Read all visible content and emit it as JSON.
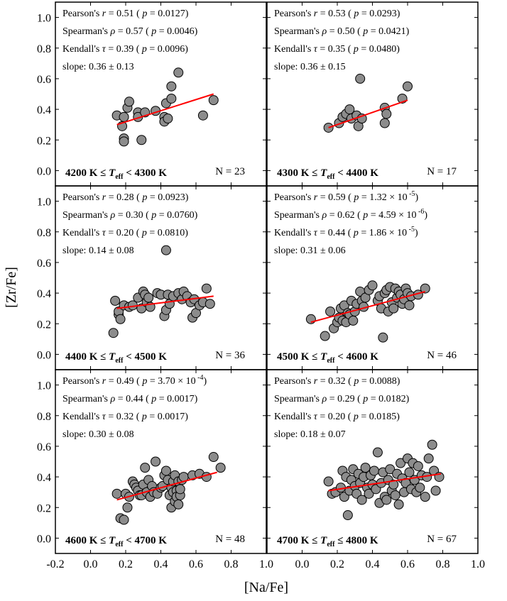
{
  "figure": {
    "xlabel": "[Na/Fe]",
    "ylabel": "[Zr/Fe]",
    "x_ticks_left": [
      "-0.2",
      "0.0",
      "0.2",
      "0.4",
      "0.6",
      "0.8",
      "1.0"
    ],
    "x_ticks_right": [
      "0.0",
      "0.2",
      "0.4",
      "0.6",
      "0.8",
      "1.0"
    ],
    "y_ticks": [
      "0.0",
      "0.2",
      "0.4",
      "0.6",
      "0.8",
      "1.0"
    ]
  },
  "chart_data": [
    {
      "type": "scatter",
      "panel": "4200-4300",
      "range": {
        "lo": "4200 K",
        "hi": "4300 K",
        "rel": "< "
      },
      "n": "N = 23",
      "pearson": {
        "val": "0.51",
        "p": "0.0127",
        "exp": ""
      },
      "spearman": {
        "val": "0.57",
        "p": "0.0046",
        "exp": ""
      },
      "kendall": {
        "val": "0.39",
        "p": "0.0096",
        "exp": ""
      },
      "slope": "0.36 ± 0.13",
      "xlim": [
        -0.2,
        1.0
      ],
      "ylim": [
        -0.1,
        1.1
      ],
      "fit": {
        "x": [
          0.15,
          0.7
        ],
        "y": [
          0.3,
          0.5
        ]
      },
      "points": [
        [
          0.15,
          0.36
        ],
        [
          0.18,
          0.29
        ],
        [
          0.19,
          0.35
        ],
        [
          0.19,
          0.21
        ],
        [
          0.19,
          0.19
        ],
        [
          0.21,
          0.41
        ],
        [
          0.22,
          0.45
        ],
        [
          0.27,
          0.38
        ],
        [
          0.27,
          0.35
        ],
        [
          0.29,
          0.2
        ],
        [
          0.31,
          0.38
        ],
        [
          0.37,
          0.39
        ],
        [
          0.42,
          0.35
        ],
        [
          0.42,
          0.32
        ],
        [
          0.43,
          0.44
        ],
        [
          0.44,
          0.34
        ],
        [
          0.46,
          0.47
        ],
        [
          0.46,
          0.55
        ],
        [
          0.5,
          0.64
        ],
        [
          0.64,
          0.36
        ],
        [
          0.7,
          0.46
        ]
      ]
    },
    {
      "type": "scatter",
      "panel": "4300-4400",
      "range": {
        "lo": "4300 K",
        "hi": "4400 K",
        "rel": "< "
      },
      "n": "N = 17",
      "pearson": {
        "val": "0.53",
        "p": "0.0293",
        "exp": ""
      },
      "spearman": {
        "val": "0.50",
        "p": "0.0421",
        "exp": ""
      },
      "kendall": {
        "val": "0.35",
        "p": "0.0480",
        "exp": ""
      },
      "slope": "0.36 ± 0.15",
      "xlim": [
        -0.2,
        1.0
      ],
      "ylim": [
        -0.1,
        1.1
      ],
      "fit": {
        "x": [
          0.15,
          0.6
        ],
        "y": [
          0.28,
          0.46
        ]
      },
      "points": [
        [
          0.15,
          0.28
        ],
        [
          0.21,
          0.31
        ],
        [
          0.23,
          0.35
        ],
        [
          0.25,
          0.37
        ],
        [
          0.27,
          0.4
        ],
        [
          0.28,
          0.34
        ],
        [
          0.31,
          0.36
        ],
        [
          0.32,
          0.29
        ],
        [
          0.33,
          0.6
        ],
        [
          0.34,
          0.34
        ],
        [
          0.47,
          0.31
        ],
        [
          0.47,
          0.41
        ],
        [
          0.48,
          0.37
        ],
        [
          0.57,
          0.47
        ],
        [
          0.6,
          0.55
        ]
      ]
    },
    {
      "type": "scatter",
      "panel": "4400-4500",
      "range": {
        "lo": "4400 K",
        "hi": "4500 K",
        "rel": "< "
      },
      "n": "N = 36",
      "pearson": {
        "val": "0.28",
        "p": "0.0923",
        "exp": ""
      },
      "spearman": {
        "val": "0.30",
        "p": "0.0760",
        "exp": ""
      },
      "kendall": {
        "val": "0.20",
        "p": "0.0810",
        "exp": ""
      },
      "slope": "0.14 ± 0.08",
      "xlim": [
        -0.2,
        1.0
      ],
      "ylim": [
        -0.1,
        1.1
      ],
      "fit": {
        "x": [
          0.15,
          0.7
        ],
        "y": [
          0.3,
          0.38
        ]
      },
      "points": [
        [
          0.13,
          0.14
        ],
        [
          0.14,
          0.35
        ],
        [
          0.16,
          0.26
        ],
        [
          0.16,
          0.28
        ],
        [
          0.17,
          0.23
        ],
        [
          0.19,
          0.32
        ],
        [
          0.22,
          0.31
        ],
        [
          0.24,
          0.32
        ],
        [
          0.27,
          0.37
        ],
        [
          0.29,
          0.3
        ],
        [
          0.3,
          0.41
        ],
        [
          0.31,
          0.39
        ],
        [
          0.32,
          0.34
        ],
        [
          0.33,
          0.37
        ],
        [
          0.34,
          0.31
        ],
        [
          0.38,
          0.4
        ],
        [
          0.4,
          0.39
        ],
        [
          0.42,
          0.25
        ],
        [
          0.43,
          0.29
        ],
        [
          0.43,
          0.68
        ],
        [
          0.44,
          0.39
        ],
        [
          0.45,
          0.33
        ],
        [
          0.47,
          0.38
        ],
        [
          0.5,
          0.4
        ],
        [
          0.52,
          0.36
        ],
        [
          0.53,
          0.41
        ],
        [
          0.55,
          0.38
        ],
        [
          0.57,
          0.34
        ],
        [
          0.58,
          0.24
        ],
        [
          0.59,
          0.36
        ],
        [
          0.6,
          0.27
        ],
        [
          0.62,
          0.32
        ],
        [
          0.64,
          0.34
        ],
        [
          0.66,
          0.43
        ],
        [
          0.68,
          0.33
        ]
      ]
    },
    {
      "type": "scatter",
      "panel": "4500-4600",
      "range": {
        "lo": "4500 K",
        "hi": "4600 K",
        "rel": "< "
      },
      "n": "N = 46",
      "pearson": {
        "val": "0.59",
        "p": "1.32 × 10",
        "exp": "-5"
      },
      "spearman": {
        "val": "0.62",
        "p": "4.59 × 10",
        "exp": "-6"
      },
      "kendall": {
        "val": "0.44",
        "p": "1.86 × 10",
        "exp": "-5"
      },
      "slope": "0.31 ± 0.06",
      "xlim": [
        -0.2,
        1.0
      ],
      "ylim": [
        -0.1,
        1.1
      ],
      "fit": {
        "x": [
          0.05,
          0.7
        ],
        "y": [
          0.21,
          0.41
        ]
      },
      "points": [
        [
          0.05,
          0.23
        ],
        [
          0.13,
          0.12
        ],
        [
          0.16,
          0.28
        ],
        [
          0.18,
          0.17
        ],
        [
          0.2,
          0.21
        ],
        [
          0.21,
          0.24
        ],
        [
          0.22,
          0.3
        ],
        [
          0.23,
          0.22
        ],
        [
          0.24,
          0.32
        ],
        [
          0.25,
          0.21
        ],
        [
          0.26,
          0.27
        ],
        [
          0.27,
          0.26
        ],
        [
          0.28,
          0.35
        ],
        [
          0.29,
          0.22
        ],
        [
          0.3,
          0.28
        ],
        [
          0.31,
          0.33
        ],
        [
          0.33,
          0.41
        ],
        [
          0.34,
          0.35
        ],
        [
          0.35,
          0.31
        ],
        [
          0.36,
          0.37
        ],
        [
          0.38,
          0.42
        ],
        [
          0.4,
          0.45
        ],
        [
          0.43,
          0.35
        ],
        [
          0.44,
          0.38
        ],
        [
          0.45,
          0.3
        ],
        [
          0.46,
          0.11
        ],
        [
          0.47,
          0.4
        ],
        [
          0.48,
          0.42
        ],
        [
          0.49,
          0.28
        ],
        [
          0.5,
          0.44
        ],
        [
          0.51,
          0.34
        ],
        [
          0.52,
          0.3
        ],
        [
          0.53,
          0.43
        ],
        [
          0.54,
          0.37
        ],
        [
          0.55,
          0.41
        ],
        [
          0.56,
          0.39
        ],
        [
          0.57,
          0.33
        ],
        [
          0.58,
          0.36
        ],
        [
          0.59,
          0.43
        ],
        [
          0.6,
          0.4
        ],
        [
          0.61,
          0.32
        ],
        [
          0.62,
          0.38
        ],
        [
          0.66,
          0.39
        ],
        [
          0.7,
          0.43
        ]
      ]
    },
    {
      "type": "scatter",
      "panel": "4600-4700",
      "range": {
        "lo": "4600 K",
        "hi": "4700 K",
        "rel": "< "
      },
      "n": "N = 48",
      "pearson": {
        "val": "0.49",
        "p": "3.70 × 10",
        "exp": "-4"
      },
      "spearman": {
        "val": "0.44",
        "p": "0.0017",
        "exp": ""
      },
      "kendall": {
        "val": "0.32",
        "p": "0.0017",
        "exp": ""
      },
      "slope": "0.30 ± 0.08",
      "xlim": [
        -0.2,
        1.0
      ],
      "ylim": [
        -0.1,
        1.1
      ],
      "fit": {
        "x": [
          0.15,
          0.72
        ],
        "y": [
          0.25,
          0.43
        ]
      },
      "points": [
        [
          0.15,
          0.29
        ],
        [
          0.17,
          0.13
        ],
        [
          0.19,
          0.12
        ],
        [
          0.2,
          0.29
        ],
        [
          0.21,
          0.2
        ],
        [
          0.22,
          0.27
        ],
        [
          0.24,
          0.37
        ],
        [
          0.25,
          0.35
        ],
        [
          0.26,
          0.33
        ],
        [
          0.27,
          0.31
        ],
        [
          0.28,
          0.28
        ],
        [
          0.29,
          0.28
        ],
        [
          0.3,
          0.35
        ],
        [
          0.31,
          0.46
        ],
        [
          0.32,
          0.3
        ],
        [
          0.33,
          0.38
        ],
        [
          0.34,
          0.27
        ],
        [
          0.35,
          0.34
        ],
        [
          0.36,
          0.3
        ],
        [
          0.37,
          0.5
        ],
        [
          0.38,
          0.29
        ],
        [
          0.4,
          0.33
        ],
        [
          0.41,
          0.34
        ],
        [
          0.42,
          0.41
        ],
        [
          0.43,
          0.44
        ],
        [
          0.44,
          0.38
        ],
        [
          0.45,
          0.28
        ],
        [
          0.46,
          0.2
        ],
        [
          0.46,
          0.33
        ],
        [
          0.47,
          0.3
        ],
        [
          0.47,
          0.37
        ],
        [
          0.48,
          0.24
        ],
        [
          0.48,
          0.41
        ],
        [
          0.49,
          0.31
        ],
        [
          0.49,
          0.27
        ],
        [
          0.5,
          0.22
        ],
        [
          0.5,
          0.37
        ],
        [
          0.51,
          0.28
        ],
        [
          0.51,
          0.32
        ],
        [
          0.52,
          0.38
        ],
        [
          0.53,
          0.4
        ],
        [
          0.58,
          0.41
        ],
        [
          0.62,
          0.42
        ],
        [
          0.66,
          0.4
        ],
        [
          0.7,
          0.53
        ],
        [
          0.74,
          0.46
        ]
      ]
    },
    {
      "type": "scatter",
      "panel": "4700-4800",
      "range": {
        "lo": "4700 K",
        "hi": "4800 K",
        "rel": "≤ "
      },
      "n": "N = 67",
      "pearson": {
        "val": "0.32",
        "p": "0.0088",
        "exp": ""
      },
      "spearman": {
        "val": "0.29",
        "p": "0.0182",
        "exp": ""
      },
      "kendall": {
        "val": "0.20",
        "p": "0.0185",
        "exp": ""
      },
      "slope": "0.18 ± 0.07",
      "xlim": [
        -0.2,
        1.0
      ],
      "ylim": [
        -0.1,
        1.1
      ],
      "fit": {
        "x": [
          0.15,
          0.79
        ],
        "y": [
          0.31,
          0.42
        ]
      },
      "points": [
        [
          0.15,
          0.37
        ],
        [
          0.17,
          0.29
        ],
        [
          0.19,
          0.3
        ],
        [
          0.22,
          0.33
        ],
        [
          0.23,
          0.44
        ],
        [
          0.24,
          0.27
        ],
        [
          0.25,
          0.4
        ],
        [
          0.26,
          0.15
        ],
        [
          0.27,
          0.31
        ],
        [
          0.28,
          0.38
        ],
        [
          0.29,
          0.45
        ],
        [
          0.3,
          0.34
        ],
        [
          0.31,
          0.29
        ],
        [
          0.32,
          0.42
        ],
        [
          0.33,
          0.36
        ],
        [
          0.34,
          0.25
        ],
        [
          0.35,
          0.4
        ],
        [
          0.36,
          0.46
        ],
        [
          0.37,
          0.33
        ],
        [
          0.38,
          0.29
        ],
        [
          0.39,
          0.41
        ],
        [
          0.4,
          0.35
        ],
        [
          0.41,
          0.44
        ],
        [
          0.42,
          0.32
        ],
        [
          0.43,
          0.56
        ],
        [
          0.44,
          0.23
        ],
        [
          0.45,
          0.36
        ],
        [
          0.46,
          0.43
        ],
        [
          0.47,
          0.27
        ],
        [
          0.48,
          0.25
        ],
        [
          0.49,
          0.38
        ],
        [
          0.5,
          0.45
        ],
        [
          0.51,
          0.31
        ],
        [
          0.52,
          0.35
        ],
        [
          0.53,
          0.28
        ],
        [
          0.54,
          0.42
        ],
        [
          0.55,
          0.22
        ],
        [
          0.56,
          0.49
        ],
        [
          0.57,
          0.39
        ],
        [
          0.58,
          0.3
        ],
        [
          0.59,
          0.36
        ],
        [
          0.6,
          0.52
        ],
        [
          0.61,
          0.43
        ],
        [
          0.62,
          0.32
        ],
        [
          0.63,
          0.49
        ],
        [
          0.64,
          0.38
        ],
        [
          0.65,
          0.3
        ],
        [
          0.66,
          0.47
        ],
        [
          0.67,
          0.33
        ],
        [
          0.68,
          0.41
        ],
        [
          0.7,
          0.27
        ],
        [
          0.71,
          0.4
        ],
        [
          0.72,
          0.52
        ],
        [
          0.74,
          0.61
        ],
        [
          0.75,
          0.44
        ],
        [
          0.76,
          0.31
        ],
        [
          0.78,
          0.4
        ]
      ]
    }
  ]
}
